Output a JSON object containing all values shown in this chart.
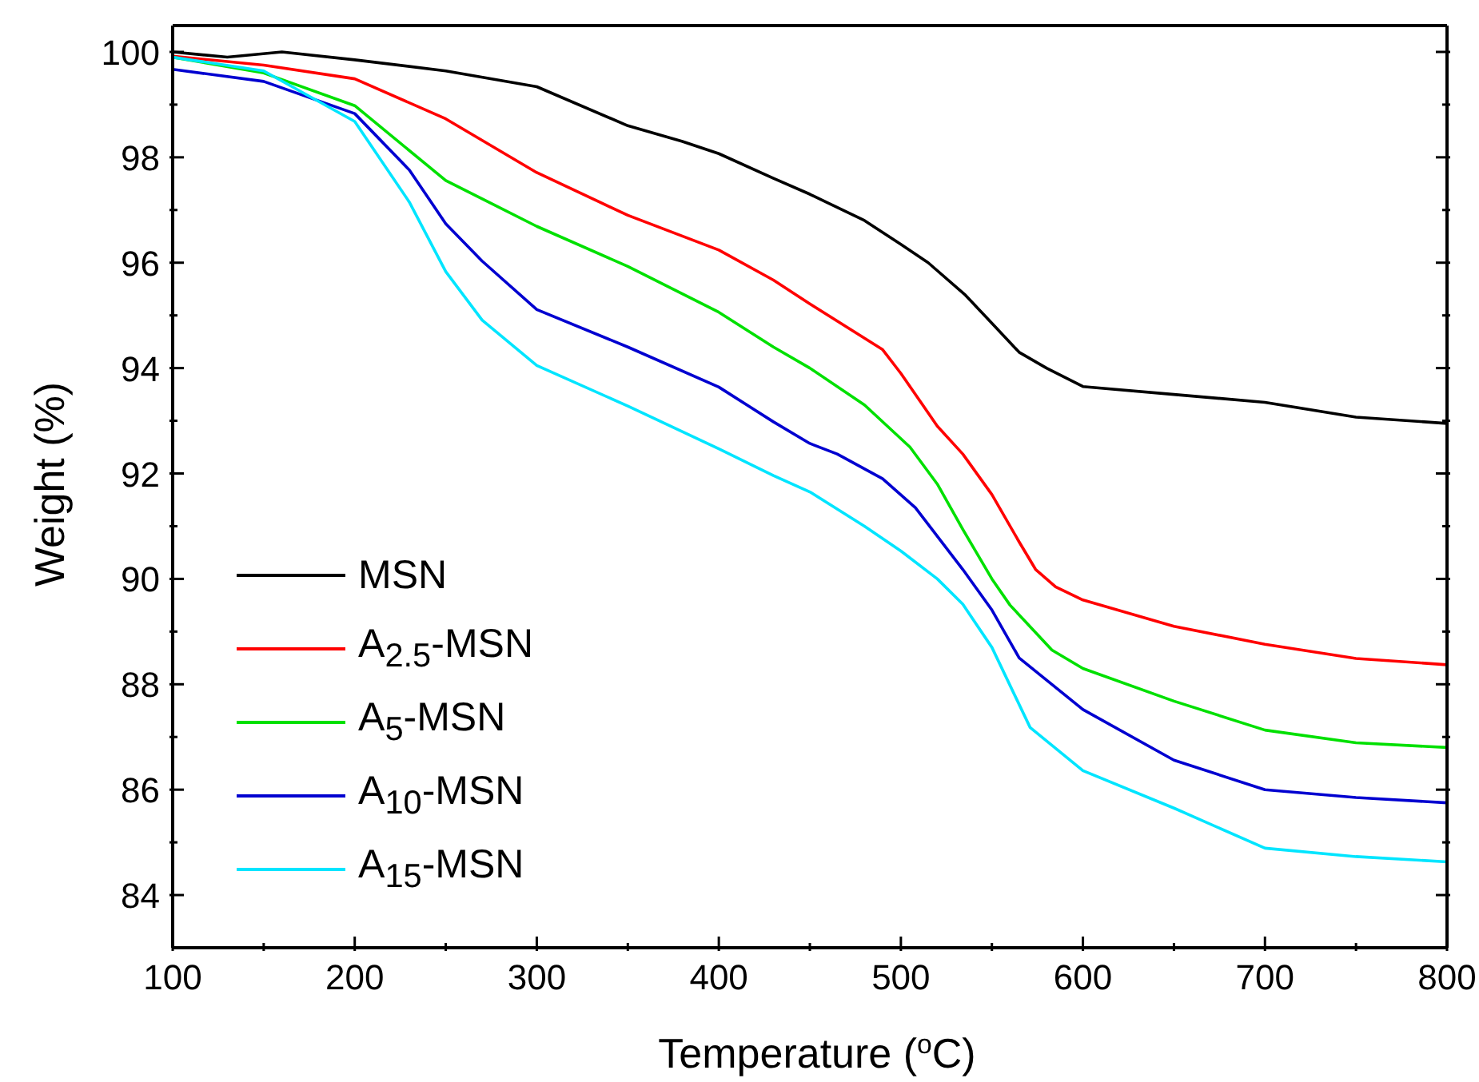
{
  "chart_data": {
    "type": "line",
    "xlabel": "Temperature ($^{o}$C)",
    "ylabel": "Weight (%)",
    "xlim": [
      100,
      800
    ],
    "ylim": [
      83,
      100.5
    ],
    "xticks": [
      100,
      {
        "value": 150,
        "label": null
      },
      200,
      {
        "value": 250,
        "label": null
      },
      300,
      {
        "value": 350,
        "label": null
      },
      400,
      {
        "value": 450,
        "label": null
      },
      500,
      {
        "value": 550,
        "label": null
      },
      600,
      {
        "value": 650,
        "label": null
      },
      700,
      {
        "value": 750,
        "label": null
      },
      800
    ],
    "yticks": [
      84,
      {
        "value": 85,
        "label": null
      },
      86,
      {
        "value": 87,
        "label": null
      },
      88,
      {
        "value": 89,
        "label": null
      },
      90,
      {
        "value": 91,
        "label": null
      },
      92,
      {
        "value": 93,
        "label": null
      },
      94,
      {
        "value": 95,
        "label": null
      },
      96,
      {
        "value": 97,
        "label": null
      },
      98,
      {
        "value": 99,
        "label": null
      },
      100
    ],
    "legend": "bottom left",
    "marker": "none",
    "line_style": "solid",
    "series": [
      {
        "name": "MSN",
        "color": "#000000",
        "x": [
          100,
          130,
          160,
          200,
          250,
          300,
          350,
          380,
          400,
          430,
          450,
          480,
          500,
          515,
          535,
          550,
          565,
          580,
          600,
          650,
          700,
          750,
          800
        ],
        "values": [
          100.0,
          99.9,
          100.0,
          99.85,
          99.64,
          99.34,
          98.6,
          98.3,
          98.07,
          97.6,
          97.3,
          96.8,
          96.35,
          96.0,
          95.4,
          94.85,
          94.3,
          94.0,
          93.65,
          93.5,
          93.35,
          93.07,
          92.95
        ]
      },
      {
        "name": "A$_{2.5}$-MSN",
        "color": "#ff0000",
        "x": [
          100,
          150,
          200,
          250,
          300,
          350,
          400,
          430,
          450,
          490,
          500,
          520,
          534,
          550,
          565,
          574,
          585,
          600,
          650,
          700,
          750,
          800
        ],
        "values": [
          99.92,
          99.75,
          99.49,
          98.73,
          97.71,
          96.9,
          96.24,
          95.67,
          95.22,
          94.35,
          93.9,
          92.9,
          92.37,
          91.6,
          90.7,
          90.18,
          89.85,
          89.6,
          89.1,
          88.76,
          88.49,
          88.37
        ]
      },
      {
        "name": "A$_{5}$-MSN",
        "color": "#00e000",
        "x": [
          100,
          150,
          200,
          250,
          300,
          350,
          400,
          430,
          450,
          480,
          505,
          520,
          534,
          550,
          560,
          583,
          600,
          650,
          700,
          750,
          800
        ],
        "values": [
          99.9,
          99.6,
          98.98,
          97.56,
          96.69,
          95.93,
          95.06,
          94.4,
          94.0,
          93.3,
          92.5,
          91.8,
          90.94,
          90.0,
          89.5,
          88.65,
          88.3,
          87.68,
          87.13,
          86.89,
          86.8
        ]
      },
      {
        "name": "A$_{10}$-MSN",
        "color": "#0000d0",
        "x": [
          100,
          150,
          200,
          230,
          250,
          270,
          300,
          350,
          400,
          430,
          450,
          465,
          490,
          508,
          534,
          550,
          565,
          600,
          650,
          700,
          750,
          800
        ],
        "values": [
          99.67,
          99.44,
          98.83,
          97.76,
          96.74,
          96.03,
          95.11,
          94.4,
          93.64,
          92.98,
          92.57,
          92.37,
          91.9,
          91.35,
          90.18,
          89.41,
          88.5,
          87.52,
          86.56,
          86.0,
          85.85,
          85.75
        ]
      },
      {
        "name": "A$_{15}$-MSN",
        "color": "#00e5ff",
        "x": [
          100,
          150,
          200,
          230,
          250,
          270,
          300,
          350,
          400,
          430,
          450,
          480,
          500,
          520,
          534,
          550,
          571,
          600,
          650,
          700,
          750,
          800
        ],
        "values": [
          99.9,
          99.64,
          98.68,
          97.15,
          95.83,
          94.91,
          94.05,
          93.28,
          92.47,
          91.96,
          91.65,
          91.0,
          90.53,
          90.0,
          89.52,
          88.7,
          87.18,
          86.36,
          85.65,
          84.89,
          84.73,
          84.63
        ]
      }
    ]
  }
}
